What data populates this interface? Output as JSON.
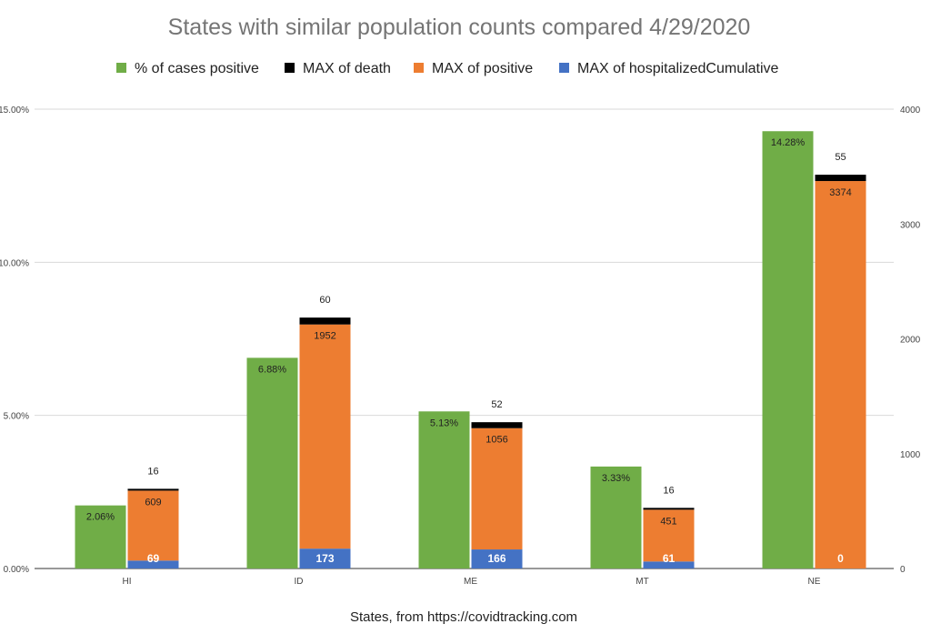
{
  "chart_data": {
    "type": "bar",
    "title": "States with similar population counts compared 4/29/2020",
    "xlabel": "States, from https://covidtracking.com",
    "categories": [
      "HI",
      "ID",
      "ME",
      "MT",
      "NE"
    ],
    "legend_position": "top",
    "grid": true,
    "left_axis": {
      "ylim": [
        0,
        15
      ],
      "ticks": [
        "0.00%",
        "5.00%",
        "10.00%",
        "15.00%"
      ]
    },
    "right_axis": {
      "ylim": [
        0,
        4000
      ],
      "ticks": [
        "0",
        "1000",
        "2000",
        "3000",
        "4000"
      ]
    },
    "series": [
      {
        "name": "% of cases positive",
        "axis": "left",
        "color": "#70ad47",
        "values": [
          2.06,
          6.88,
          5.13,
          3.33,
          14.28
        ],
        "labels": [
          "2.06%",
          "6.88%",
          "5.13%",
          "3.33%",
          "14.28%"
        ]
      },
      {
        "name": "MAX of death",
        "axis": "right",
        "stack": "counts",
        "color": "#000000",
        "values": [
          16,
          60,
          52,
          16,
          55
        ],
        "labels": [
          "16",
          "60",
          "52",
          "16",
          "55"
        ]
      },
      {
        "name": "MAX of positive",
        "axis": "right",
        "stack": "counts",
        "color": "#ed7d31",
        "values": [
          609,
          1952,
          1056,
          451,
          3374
        ],
        "labels": [
          "609",
          "1952",
          "1056",
          "451",
          "3374"
        ]
      },
      {
        "name": "MAX of hospitalizedCumulative",
        "axis": "right",
        "stack": "counts",
        "color": "#4472c4",
        "values": [
          69,
          173,
          166,
          61,
          0
        ],
        "labels": [
          "69",
          "173",
          "166",
          "61",
          "0"
        ]
      }
    ]
  }
}
